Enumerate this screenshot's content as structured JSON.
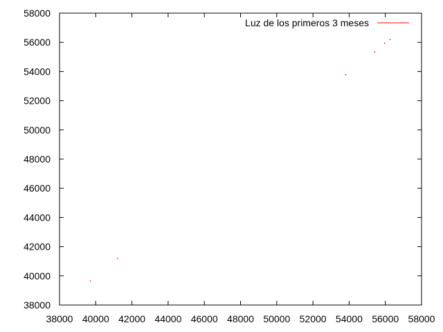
{
  "chart_data": {
    "type": "scatter",
    "title": "",
    "xlabel": "",
    "ylabel": "",
    "xlim": [
      38000,
      58000
    ],
    "ylim": [
      38000,
      58000
    ],
    "xticks": [
      38000,
      40000,
      42000,
      44000,
      46000,
      48000,
      50000,
      52000,
      54000,
      56000,
      58000
    ],
    "yticks": [
      38000,
      40000,
      42000,
      44000,
      46000,
      48000,
      50000,
      52000,
      54000,
      56000,
      58000
    ],
    "grid": false,
    "legend_position": "top-right",
    "series": [
      {
        "name": "Luz de los primeros 3 meses",
        "color": "#ff0000",
        "marker": "dot",
        "points": [
          {
            "x": 39700,
            "y": 39650
          },
          {
            "x": 41200,
            "y": 41200
          },
          {
            "x": 53800,
            "y": 53800
          },
          {
            "x": 55400,
            "y": 55350
          },
          {
            "x": 55950,
            "y": 55950
          },
          {
            "x": 56250,
            "y": 56200
          }
        ]
      }
    ]
  }
}
